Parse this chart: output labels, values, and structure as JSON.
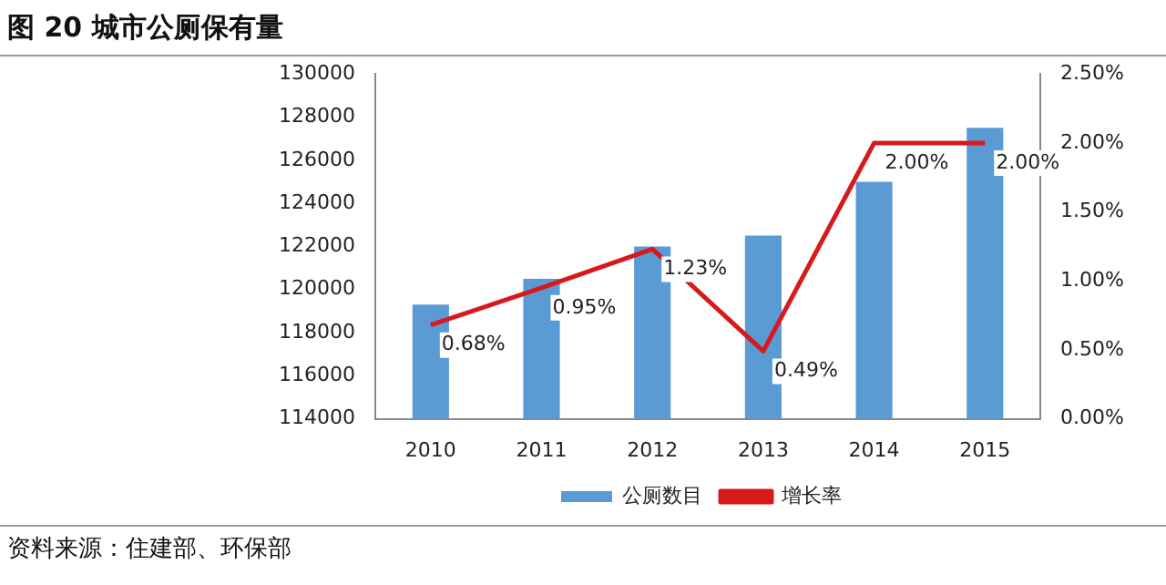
{
  "chart_data": {
    "type": "bar",
    "title": "图 20 城市公厕保有量",
    "categories": [
      "2010",
      "2011",
      "2012",
      "2013",
      "2014",
      "2015"
    ],
    "series": [
      {
        "name": "公厕数目",
        "color": "#5b9bd5",
        "values": [
          119300,
          120500,
          122000,
          122500,
          125000,
          127500
        ]
      },
      {
        "name": "增长率",
        "type": "line",
        "axis": "y2",
        "color": "#d7191c",
        "values": [
          0.68,
          0.95,
          1.23,
          0.49,
          2.0,
          2.0
        ],
        "value_labels": [
          "0.68%",
          "0.95%",
          "1.23%",
          "0.49%",
          "2.00%",
          "2.00%"
        ]
      }
    ],
    "ylim": [
      114000,
      130000
    ],
    "yticks": [
      114000,
      116000,
      118000,
      120000,
      122000,
      124000,
      126000,
      128000,
      130000
    ],
    "y2lim": [
      0,
      2.5
    ],
    "y2ticks": [
      {
        "value": 0,
        "label": "0.00%"
      },
      {
        "value": 0.5,
        "label": "0.50%"
      },
      {
        "value": 1,
        "label": "1.00%"
      },
      {
        "value": 1.5,
        "label": "1.50%"
      },
      {
        "value": 2,
        "label": "2.00%"
      },
      {
        "value": 2.5,
        "label": "2.50%"
      }
    ],
    "legend": "bottom",
    "marker": "none",
    "annotations": [
      "资料来源：住建部、环保部"
    ]
  }
}
